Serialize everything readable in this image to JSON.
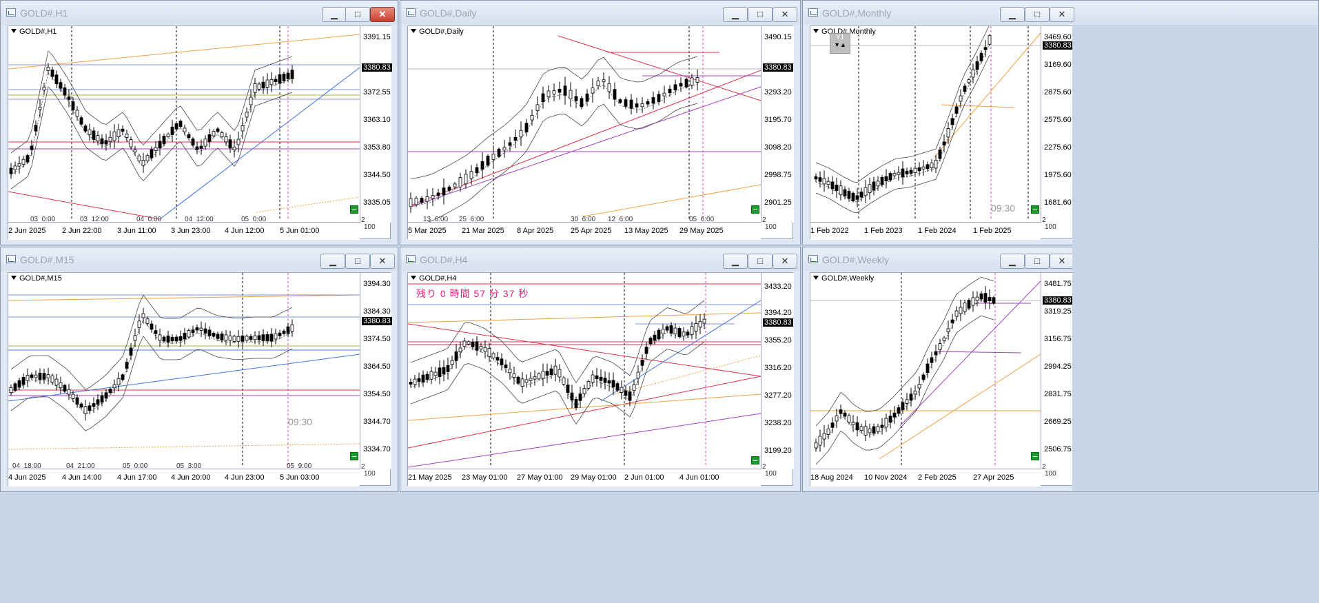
{
  "windows": [
    {
      "id": "h1",
      "title": "GOLD#,H1",
      "symbol": "GOLD#,H1",
      "current_price": "3380.83",
      "price_labels": [
        "3391.15",
        "3380.83",
        "3372.55",
        "3363.10",
        "3353.80",
        "3344.50",
        "3335.05"
      ],
      "time_labels": [
        "2 Jun 2025",
        "2 Jun 22:00",
        "3 Jun 11:00",
        "3 Jun 23:00",
        "4 Jun 12:00",
        "5 Jun 01:00"
      ],
      "inner_time_labels": [
        "03_0:00",
        "03_12:00",
        "04_0:00",
        "04_12:00",
        "05_0:00"
      ],
      "scale_labels": [
        "2",
        "100"
      ]
    },
    {
      "id": "daily",
      "title": "GOLD#,Daily",
      "symbol": "GOLD#,Daily",
      "current_price": "3380.83",
      "price_labels": [
        "3490.15",
        "3380.83",
        "3293.20",
        "3195.70",
        "3098.20",
        "2998.75",
        "2901.25"
      ],
      "time_labels": [
        "5 Mar 2025",
        "21 Mar 2025",
        "8 Apr 2025",
        "25 Apr 2025",
        "13 May 2025",
        "29 May 2025"
      ],
      "inner_time_labels": [
        "13_6:00",
        "25_6:00",
        "30_6:00",
        "12_6:00",
        "05_6:00"
      ],
      "scale_labels": [
        "2",
        "100"
      ]
    },
    {
      "id": "monthly",
      "title": "GOLD#,Monthly",
      "symbol": "GOLD#,Monthly",
      "current_price": "3380.83",
      "price_labels": [
        "3469.60",
        "3380.83",
        "3169.60",
        "2875.60",
        "2575.60",
        "2275.60",
        "1975.60",
        "1681.60"
      ],
      "time_labels": [
        "1 Feb 2022",
        "1 Feb 2023",
        "1 Feb 2024",
        "1 Feb 2025"
      ],
      "countdown_time": "09:30",
      "y1_label": "Y1",
      "scale_labels": [
        "2",
        "100"
      ]
    },
    {
      "id": "m15",
      "title": "GOLD#,M15",
      "symbol": "GOLD#,M15",
      "current_price": "3380.83",
      "price_labels": [
        "3394.30",
        "3384.30",
        "3380.83",
        "3374.50",
        "3364.50",
        "3354.50",
        "3344.70",
        "3334.70"
      ],
      "time_labels": [
        "4 Jun 2025",
        "4 Jun 14:00",
        "4 Jun 17:00",
        "4 Jun 20:00",
        "4 Jun 23:00",
        "5 Jun 03:00"
      ],
      "inner_time_labels": [
        "04_18:00",
        "04_21:00",
        "05_0:00",
        "05_3:00",
        "05_9:00"
      ],
      "countdown_time": "09:30",
      "scale_labels": [
        "2",
        "100"
      ]
    },
    {
      "id": "h4",
      "title": "GOLD#,H4",
      "symbol": "GOLD#,H4",
      "current_price": "3380.83",
      "countdown": "残り 0 時間 57 分 37 秒",
      "price_labels": [
        "3433.20",
        "3394.20",
        "3380.83",
        "3355.20",
        "3316.20",
        "3277.20",
        "3238.20",
        "3199.20"
      ],
      "time_labels": [
        "21 May 2025",
        "23 May 01:00",
        "27 May 01:00",
        "29 May 01:00",
        "2 Jun 01:00",
        "4 Jun 01:00"
      ],
      "scale_labels": [
        "2",
        "100"
      ]
    },
    {
      "id": "weekly",
      "title": "GOLD#,Weekly",
      "symbol": "GOLD#,Weekly",
      "current_price": "3380.83",
      "price_labels": [
        "3481.75",
        "3380.83",
        "3319.25",
        "3156.75",
        "2994.25",
        "2831.75",
        "2669.25",
        "2506.75"
      ],
      "time_labels": [
        "18 Aug 2024",
        "10 Nov 2024",
        "2 Feb 2025",
        "27 Apr 2025"
      ],
      "scale_labels": [
        "2",
        "100"
      ]
    }
  ],
  "window_buttons": {
    "minimize": "▁",
    "maximize": "□",
    "close": "✕"
  }
}
